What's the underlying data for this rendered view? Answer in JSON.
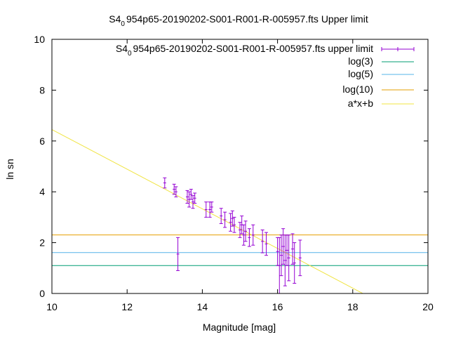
{
  "chart_data": {
    "type": "scatter",
    "title_main": "S4",
    "title_sub": "0",
    "title_rest": "954p65-20190202-S001-R001-R-005957.fts Upper limit",
    "xlabel": "Magnitude [mag]",
    "ylabel": "ln sn",
    "xlim": [
      10,
      20
    ],
    "ylim": [
      0,
      10
    ],
    "xticks": [
      "10",
      "12",
      "14",
      "16",
      "18",
      "20"
    ],
    "yticks": [
      "0",
      "2",
      "4",
      "6",
      "8",
      "10"
    ],
    "grid": false,
    "legend_position": "top-right",
    "legend": [
      {
        "label_main": "S4",
        "label_sub": "0",
        "label_rest": "954p65-20190202-S001-R001-R-005957.fts upper limit",
        "color": "#9400d3"
      },
      {
        "label": "log(3)",
        "color": "#009e73"
      },
      {
        "label": "log(5)",
        "color": "#56b4e9"
      },
      {
        "label": "log(10)",
        "color": "#e69f00"
      },
      {
        "label": "a*x+b",
        "color": "#f0e442"
      }
    ],
    "series": [
      {
        "name": "upper limit",
        "color": "#9400d3",
        "points": [
          {
            "x": 13.0,
            "y": 4.35,
            "err": 0.2
          },
          {
            "x": 13.25,
            "y": 4.1,
            "err": 0.2
          },
          {
            "x": 13.3,
            "y": 4.0,
            "err": 0.2
          },
          {
            "x": 13.35,
            "y": 1.55,
            "err": 0.65
          },
          {
            "x": 13.6,
            "y": 3.8,
            "err": 0.25
          },
          {
            "x": 13.65,
            "y": 3.7,
            "err": 0.3
          },
          {
            "x": 13.7,
            "y": 3.9,
            "err": 0.2
          },
          {
            "x": 13.75,
            "y": 3.6,
            "err": 0.25
          },
          {
            "x": 13.8,
            "y": 3.75,
            "err": 0.2
          },
          {
            "x": 14.1,
            "y": 3.3,
            "err": 0.3
          },
          {
            "x": 14.2,
            "y": 3.3,
            "err": 0.3
          },
          {
            "x": 14.25,
            "y": 3.4,
            "err": 0.2
          },
          {
            "x": 14.5,
            "y": 3.05,
            "err": 0.3
          },
          {
            "x": 14.6,
            "y": 2.9,
            "err": 0.3
          },
          {
            "x": 14.75,
            "y": 2.8,
            "err": 0.35
          },
          {
            "x": 14.8,
            "y": 2.95,
            "err": 0.3
          },
          {
            "x": 14.85,
            "y": 2.7,
            "err": 0.3
          },
          {
            "x": 15.0,
            "y": 2.5,
            "err": 0.3
          },
          {
            "x": 15.05,
            "y": 2.7,
            "err": 0.35
          },
          {
            "x": 15.1,
            "y": 2.3,
            "err": 0.4
          },
          {
            "x": 15.15,
            "y": 2.45,
            "err": 0.4
          },
          {
            "x": 15.25,
            "y": 2.2,
            "err": 0.35
          },
          {
            "x": 15.35,
            "y": 2.3,
            "err": 0.4
          },
          {
            "x": 15.6,
            "y": 2.05,
            "err": 0.45
          },
          {
            "x": 15.7,
            "y": 1.95,
            "err": 0.45
          },
          {
            "x": 16.0,
            "y": 1.65,
            "err": 0.55
          },
          {
            "x": 16.05,
            "y": 1.1,
            "err": 1.1
          },
          {
            "x": 16.1,
            "y": 1.5,
            "err": 0.8
          },
          {
            "x": 16.15,
            "y": 1.85,
            "err": 0.7
          },
          {
            "x": 16.2,
            "y": 1.3,
            "err": 1.0
          },
          {
            "x": 16.25,
            "y": 1.7,
            "err": 0.6
          },
          {
            "x": 16.3,
            "y": 1.4,
            "err": 0.9
          },
          {
            "x": 16.4,
            "y": 1.75,
            "err": 0.6
          },
          {
            "x": 16.45,
            "y": 1.2,
            "err": 0.8
          },
          {
            "x": 16.6,
            "y": 1.4,
            "err": 0.7
          }
        ]
      }
    ],
    "hlines": [
      {
        "name": "log(3)",
        "y": 1.0986,
        "color": "#009e73"
      },
      {
        "name": "log(5)",
        "y": 1.6094,
        "color": "#56b4e9"
      },
      {
        "name": "log(10)",
        "y": 2.3026,
        "color": "#e69f00"
      }
    ],
    "fit_line": {
      "name": "a*x+b",
      "slope": -0.78,
      "intercept": 14.25,
      "color": "#f0e442"
    }
  }
}
